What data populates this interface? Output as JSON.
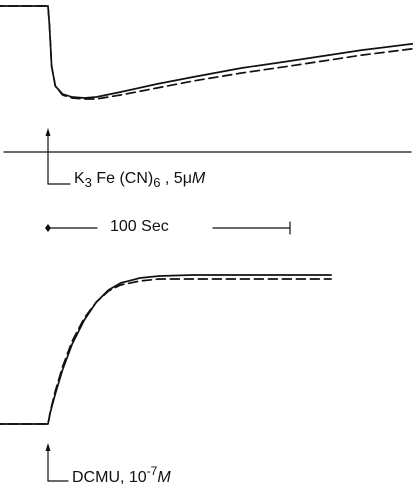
{
  "chart_data": [
    {
      "type": "line",
      "panel": "top",
      "series": [
        {
          "style": "solid",
          "points": [
            [
              -22,
              0
            ],
            [
              0,
              0
            ],
            [
              0.6,
              -20
            ],
            [
              1.5,
              -60
            ],
            [
              3,
              -80
            ],
            [
              6,
              -88
            ],
            [
              10,
              -91
            ],
            [
              15,
              -92
            ],
            [
              20,
              -91
            ],
            [
              30,
              -86
            ],
            [
              45,
              -78
            ],
            [
              60,
              -71
            ],
            [
              80,
              -62
            ],
            [
              100,
              -55
            ],
            [
              130,
              -44
            ],
            [
              160,
              -35
            ],
            [
              190,
              -28
            ],
            [
              215,
              -23
            ]
          ]
        },
        {
          "style": "dashed",
          "points": [
            [
              -22,
              0
            ],
            [
              0,
              0
            ],
            [
              0.6,
              -20
            ],
            [
              1.5,
              -60
            ],
            [
              3,
              -80
            ],
            [
              6,
              -89
            ],
            [
              10,
              -92
            ],
            [
              15,
              -93
            ],
            [
              20,
              -93
            ],
            [
              30,
              -89
            ],
            [
              45,
              -82
            ],
            [
              60,
              -75
            ],
            [
              80,
              -67
            ],
            [
              100,
              -60
            ],
            [
              130,
              -49
            ],
            [
              160,
              -40
            ],
            [
              190,
              -32
            ],
            [
              215,
              -27
            ]
          ]
        }
      ]
    },
    {
      "type": "line",
      "panel": "bottom",
      "series": [
        {
          "style": "solid",
          "points": [
            [
              -22,
              0
            ],
            [
              0,
              0
            ],
            [
              1,
              12
            ],
            [
              3,
              30
            ],
            [
              6,
              54
            ],
            [
              10,
              80
            ],
            [
              15,
              104
            ],
            [
              20,
              122
            ],
            [
              25,
              134
            ],
            [
              30,
              141
            ],
            [
              38,
              146
            ],
            [
              46,
              148
            ],
            [
              60,
              149
            ],
            [
              80,
              149
            ],
            [
              100,
              149
            ],
            [
              117,
              149
            ]
          ]
        },
        {
          "style": "dashed",
          "points": [
            [
              -22,
              0
            ],
            [
              0,
              0
            ],
            [
              1,
              13
            ],
            [
              3,
              33
            ],
            [
              6,
              57
            ],
            [
              10,
              83
            ],
            [
              15,
              106
            ],
            [
              20,
              122
            ],
            [
              25,
              133
            ],
            [
              30,
              139
            ],
            [
              38,
              143
            ],
            [
              46,
              145
            ],
            [
              60,
              145
            ],
            [
              80,
              145
            ],
            [
              100,
              145
            ],
            [
              117,
              145
            ]
          ]
        }
      ]
    }
  ],
  "annotations": {
    "injection_top": {
      "compound_base": "K",
      "compound_sub1": "3",
      "compound_mid": " Fe (CN)",
      "compound_sub2": "6",
      "conc": " , 5μ",
      "unit": "M"
    },
    "scale_bar": {
      "label": "100 Sec",
      "seconds": 100
    },
    "injection_bottom": {
      "compound": "DCMU, 10",
      "exponent": "-7",
      "unit": "M"
    }
  }
}
